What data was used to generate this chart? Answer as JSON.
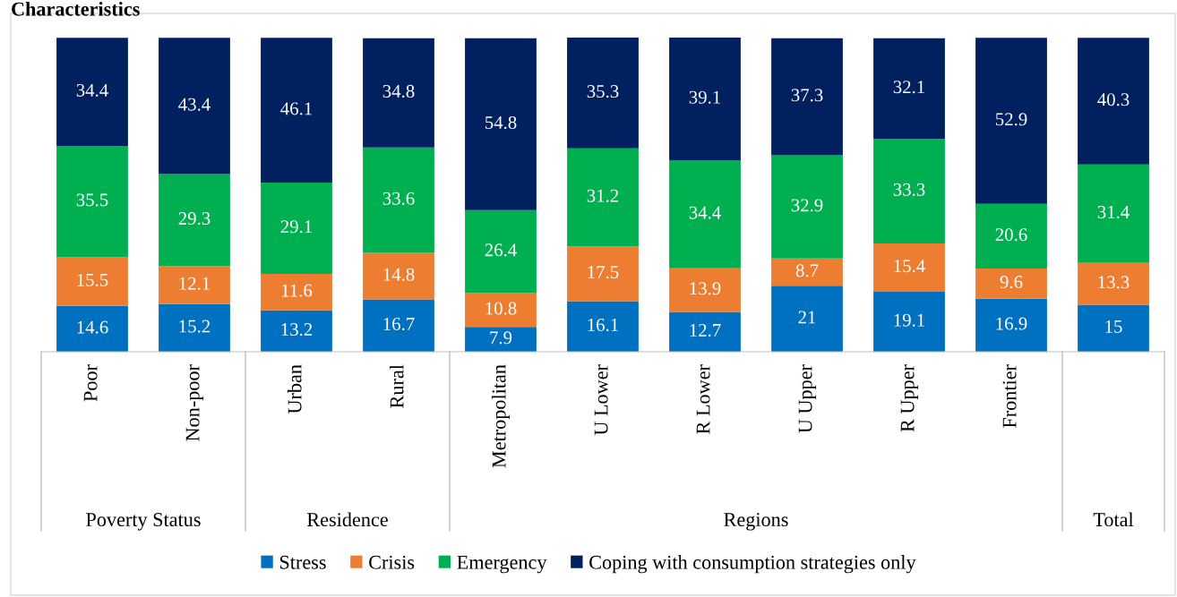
{
  "chart_data": {
    "type": "bar",
    "title": "Characteristics",
    "stacked": true,
    "data_labels": true,
    "legend": "bottom",
    "categories": [
      "Poor",
      "Non-poor",
      "Urban",
      "Rural",
      "Metropolitan",
      "U Lower",
      "R Lower",
      "U Upper",
      "R Upper",
      "Frontier",
      null
    ],
    "series": [
      {
        "name": "Stress",
        "color": "#0070c0",
        "values": [
          14.6,
          15.2,
          13.2,
          16.7,
          7.9,
          16.1,
          12.7,
          21,
          19.1,
          16.9,
          15
        ]
      },
      {
        "name": "Crisis",
        "color": "#ed7d31",
        "values": [
          15.5,
          12.1,
          11.6,
          14.8,
          10.8,
          17.5,
          13.9,
          8.7,
          15.4,
          9.6,
          13.3
        ]
      },
      {
        "name": "Emergency",
        "color": "#00b050",
        "values": [
          35.5,
          29.3,
          29.1,
          33.6,
          26.4,
          31.2,
          34.4,
          32.9,
          33.3,
          20.6,
          31.4
        ]
      },
      {
        "name": "Coping with consumption strategies only",
        "color": "#002060",
        "values": [
          34.4,
          43.4,
          46.1,
          34.8,
          54.8,
          35.3,
          39.1,
          37.3,
          32.1,
          52.9,
          40.3
        ]
      }
    ],
    "annotations": [
      "Poverty Status",
      "Residence",
      "Regions",
      "Total"
    ]
  }
}
